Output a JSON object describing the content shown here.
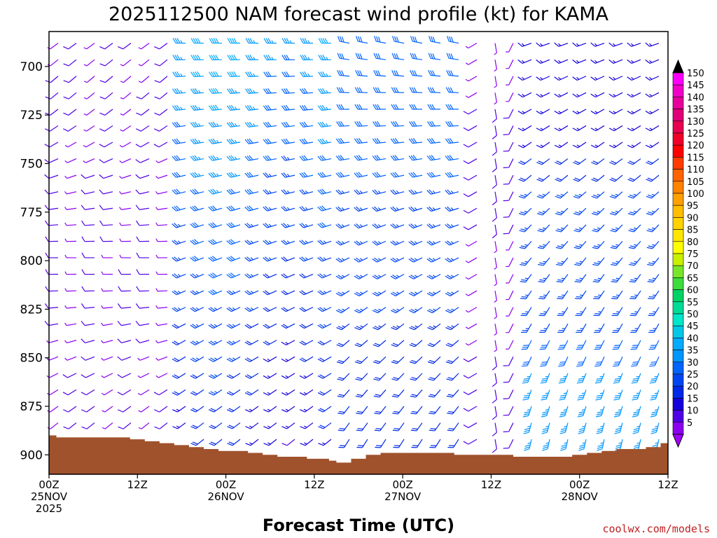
{
  "chart_data": {
    "type": "wind-barb-profile",
    "title": "2025112500 NAM forecast wind profile (kt) for KAMA",
    "xlabel": "Forecast Time (UTC)",
    "ylabel": "",
    "x_range_hours": [
      0,
      84
    ],
    "y_range_hpa": [
      682,
      910
    ],
    "x_ticks": [
      {
        "hour": 0,
        "label": "00Z",
        "date": "25NOV",
        "year": "2025"
      },
      {
        "hour": 12,
        "label": "12Z",
        "date": "",
        "year": ""
      },
      {
        "hour": 24,
        "label": "00Z",
        "date": "26NOV",
        "year": ""
      },
      {
        "hour": 36,
        "label": "12Z",
        "date": "",
        "year": ""
      },
      {
        "hour": 48,
        "label": "00Z",
        "date": "27NOV",
        "year": ""
      },
      {
        "hour": 60,
        "label": "12Z",
        "date": "",
        "year": ""
      },
      {
        "hour": 72,
        "label": "00Z",
        "date": "28NOV",
        "year": ""
      },
      {
        "hour": 84,
        "label": "12Z",
        "date": "",
        "year": ""
      }
    ],
    "y_ticks": [
      "700",
      "725",
      "750",
      "775",
      "800",
      "825",
      "850",
      "875",
      "900"
    ],
    "y_tick_values": [
      700,
      725,
      750,
      775,
      800,
      825,
      850,
      875,
      900
    ],
    "terrain_surface_pressure_hpa": {
      "hours": [
        0,
        1,
        3,
        6,
        9,
        11,
        13,
        15,
        17,
        19,
        21,
        23,
        25,
        27,
        29,
        31,
        33,
        35,
        37,
        38,
        39,
        40,
        41,
        43,
        45,
        47,
        49,
        51,
        53,
        55,
        57,
        59,
        61,
        63,
        65,
        67,
        69,
        71,
        73,
        75,
        77,
        79,
        81,
        83,
        84
      ],
      "values": [
        890,
        891,
        891,
        891,
        891,
        892,
        893,
        894,
        895,
        896,
        897,
        898,
        898,
        899,
        900,
        901,
        901,
        902,
        902,
        903,
        904,
        904,
        902,
        900,
        899,
        899,
        899,
        899,
        899,
        900,
        900,
        900,
        900,
        901,
        901,
        901,
        901,
        900,
        899,
        898,
        897,
        897,
        896,
        894,
        893
      ]
    },
    "colorbar": {
      "unit": "kt",
      "labels": [
        "150",
        "145",
        "140",
        "135",
        "130",
        "125",
        "120",
        "115",
        "110",
        "105",
        "100",
        "95",
        "90",
        "85",
        "80",
        "75",
        "70",
        "65",
        "60",
        "55",
        "50",
        "45",
        "40",
        "35",
        "30",
        "25",
        "20",
        "15",
        "10",
        "5"
      ],
      "values": [
        150,
        145,
        140,
        135,
        130,
        125,
        120,
        115,
        110,
        105,
        100,
        95,
        90,
        85,
        80,
        75,
        70,
        65,
        60,
        55,
        50,
        45,
        40,
        35,
        30,
        25,
        20,
        15,
        10,
        5
      ],
      "colors": [
        "#ff00ff",
        "#f000c8",
        "#e8009c",
        "#e00078",
        "#e80050",
        "#f00028",
        "#ff0000",
        "#ff3c00",
        "#ff6400",
        "#ff8200",
        "#ffa000",
        "#ffbe00",
        "#ffd200",
        "#ffe600",
        "#ffff00",
        "#c8f000",
        "#78e628",
        "#3cdc3c",
        "#00d264",
        "#00dc96",
        "#00e6c8",
        "#00c8e6",
        "#00aaff",
        "#0096ff",
        "#0064ff",
        "#0046f0",
        "#0028e6",
        "#1400dc",
        "#5000e6",
        "#8c00f0"
      ],
      "top_arrow_color": "#000000",
      "bottom_arrow_color": "#a000ff"
    },
    "barb_grid": {
      "columns": 34,
      "levels": 25,
      "speed_scale_kt": [
        0,
        5,
        10,
        15,
        20,
        25,
        30,
        35,
        40,
        45
      ],
      "notes": "Wind barbs: light W-SW winds near 5-15 kt at most levels early; stronger 25-40 kt westerlies aloft after day 1; 20-40 kt southerly low-level winds late in period"
    }
  },
  "footer": {
    "credit": "coolwx.com/models"
  }
}
